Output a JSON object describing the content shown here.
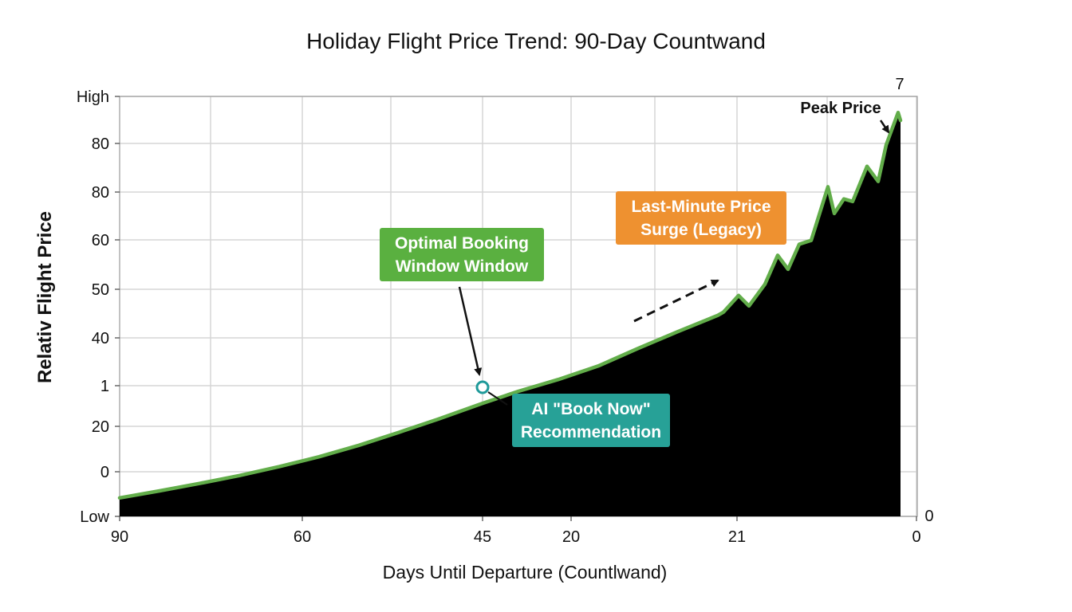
{
  "chart_data": {
    "type": "area",
    "title": "Holiday Flight Price Trend: 90-Day Countwand",
    "xlabel": "Days Until Departure (Countlwand)",
    "ylabel": "Relativ Flight Price",
    "x_tick_labels": [
      "90",
      "60",
      "45",
      "20",
      "21",
      "0"
    ],
    "x_end_label": "0",
    "y_tick_labels": [
      "Low",
      "0",
      "20",
      "1",
      "40",
      "50",
      "60",
      "80",
      "80",
      "High"
    ],
    "peak_tick_label": "7",
    "series": [
      {
        "x": [
          0,
          0.05,
          0.1,
          0.15,
          0.2,
          0.25,
          0.3,
          0.35,
          0.4,
          0.455,
          0.5,
          0.55,
          0.6,
          0.65,
          0.7,
          0.75,
          0.757,
          0.776,
          0.789,
          0.809,
          0.825,
          0.838,
          0.852,
          0.867,
          0.888,
          0.896,
          0.908,
          0.919,
          0.937,
          0.951,
          0.961,
          0.976,
          0.979
        ],
        "y": [
          0.11,
          0.152,
          0.196,
          0.243,
          0.296,
          0.355,
          0.423,
          0.5,
          0.58,
          0.673,
          0.745,
          0.815,
          0.895,
          1.0,
          1.1,
          1.197,
          1.216,
          1.315,
          1.253,
          1.382,
          1.554,
          1.471,
          1.62,
          1.643,
          1.962,
          1.803,
          1.89,
          1.875,
          2.084,
          1.994,
          2.211,
          2.404,
          2.357
        ]
      }
    ],
    "annotations": {
      "optimal_window": "Optimal Booking\nWindow Window",
      "ai_recommendation": "AI \"Book Now\"\nRecommendation",
      "last_minute": "Last-Minute Price\nSurge (Legacy)",
      "peak": "Peak Price"
    },
    "colors": {
      "line": "#62ad4a",
      "area": "#000000",
      "optimal_box": "#5ab040",
      "ai_box": "#27a197",
      "ai_marker": "#1f9a9a",
      "surge_box": "#ee9130"
    },
    "grid": true,
    "legend": "none"
  }
}
